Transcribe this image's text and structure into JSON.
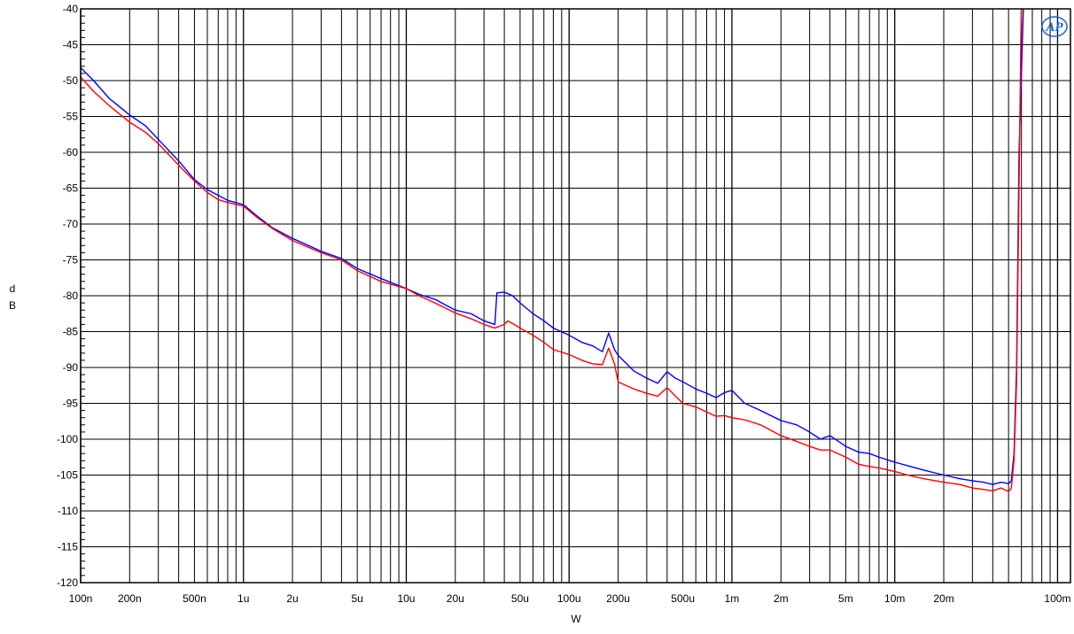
{
  "chart_data": {
    "type": "line",
    "title": "",
    "xlabel": "W",
    "ylabel": "d B",
    "ylabel_lines": [
      "d",
      "B"
    ],
    "xscale": "log",
    "xlim": [
      1e-07,
      0.12
    ],
    "ylim": [
      -120,
      -40
    ],
    "grid": true,
    "logo_text": "AP",
    "x_ticks": [
      {
        "value": 1e-07,
        "label": "100n"
      },
      {
        "value": 2e-07,
        "label": "200n"
      },
      {
        "value": 5e-07,
        "label": "500n"
      },
      {
        "value": 1e-06,
        "label": "1u"
      },
      {
        "value": 2e-06,
        "label": "2u"
      },
      {
        "value": 5e-06,
        "label": "5u"
      },
      {
        "value": 1e-05,
        "label": "10u"
      },
      {
        "value": 2e-05,
        "label": "20u"
      },
      {
        "value": 5e-05,
        "label": "50u"
      },
      {
        "value": 0.0001,
        "label": "100u"
      },
      {
        "value": 0.0002,
        "label": "200u"
      },
      {
        "value": 0.0005,
        "label": "500u"
      },
      {
        "value": 0.001,
        "label": "1m"
      },
      {
        "value": 0.002,
        "label": "2m"
      },
      {
        "value": 0.005,
        "label": "5m"
      },
      {
        "value": 0.01,
        "label": "10m"
      },
      {
        "value": 0.02,
        "label": "20m"
      },
      {
        "value": 0.1,
        "label": "100m"
      }
    ],
    "y_ticks": [
      {
        "value": -40,
        "label": "-40"
      },
      {
        "value": -45,
        "label": "-45"
      },
      {
        "value": -50,
        "label": "-50"
      },
      {
        "value": -55,
        "label": "-55"
      },
      {
        "value": -60,
        "label": "-60"
      },
      {
        "value": -65,
        "label": "-65"
      },
      {
        "value": -70,
        "label": "-70"
      },
      {
        "value": -75,
        "label": "-75"
      },
      {
        "value": -80,
        "label": "-80"
      },
      {
        "value": -85,
        "label": "-85"
      },
      {
        "value": -90,
        "label": "-90"
      },
      {
        "value": -95,
        "label": "-95"
      },
      {
        "value": -100,
        "label": "-100"
      },
      {
        "value": -105,
        "label": "-105"
      },
      {
        "value": -110,
        "label": "-110"
      },
      {
        "value": -115,
        "label": "-115"
      },
      {
        "value": -120,
        "label": "-120"
      }
    ],
    "series": [
      {
        "color": "#0000ff",
        "x": [
          1e-07,
          1.2e-07,
          1.5e-07,
          2e-07,
          2.5e-07,
          3e-07,
          4e-07,
          5e-07,
          6e-07,
          7e-07,
          8e-07,
          1e-06,
          1.2e-06,
          1.5e-06,
          2e-06,
          3e-06,
          4e-06,
          5e-06,
          7e-06,
          1e-05,
          1.2e-05,
          1.5e-05,
          2e-05,
          2.5e-05,
          3e-05,
          3.5e-05,
          3.6e-05,
          4e-05,
          4.5e-05,
          5e-05,
          6e-05,
          7e-05,
          8e-05,
          0.0001,
          0.00012,
          0.00014,
          0.00016,
          0.000175,
          0.00019,
          0.0002,
          0.00025,
          0.0003,
          0.00035,
          0.0004,
          0.00045,
          0.0005,
          0.0006,
          0.0007,
          0.0008,
          0.0009,
          0.001,
          0.0012,
          0.0015,
          0.002,
          0.0025,
          0.003,
          0.0035,
          0.004,
          0.005,
          0.006,
          0.007,
          0.008,
          0.01,
          0.012,
          0.015,
          0.02,
          0.025,
          0.03,
          0.035,
          0.04,
          0.045,
          0.05,
          0.052,
          0.054,
          0.056,
          0.058,
          0.062
        ],
        "y": [
          -48.2,
          -50,
          -52.5,
          -54.8,
          -56.3,
          -58.2,
          -61.2,
          -63.8,
          -65.2,
          -66,
          -66.7,
          -67.3,
          -68.8,
          -70.5,
          -72,
          -73.8,
          -74.8,
          -76.2,
          -77.6,
          -79,
          -79.8,
          -80.5,
          -82,
          -82.5,
          -83.5,
          -84,
          -79.6,
          -79.5,
          -80,
          -81,
          -82.5,
          -83.5,
          -84.5,
          -85.5,
          -86.5,
          -87,
          -87.8,
          -85.2,
          -87.5,
          -88.3,
          -90.5,
          -91.5,
          -92.2,
          -90.6,
          -91.5,
          -92,
          -93,
          -93.6,
          -94.2,
          -93.5,
          -93.2,
          -95,
          -96,
          -97.4,
          -98,
          -99,
          -100,
          -99.5,
          -101,
          -101.8,
          -102,
          -102.5,
          -103.2,
          -103.7,
          -104.3,
          -105,
          -105.5,
          -105.8,
          -106,
          -106.3,
          -106,
          -106.2,
          -105.8,
          -102,
          -90,
          -60,
          -38
        ]
      },
      {
        "color": "#ff0000",
        "x": [
          1e-07,
          1.2e-07,
          1.5e-07,
          2e-07,
          2.5e-07,
          3e-07,
          4e-07,
          5e-07,
          6e-07,
          7e-07,
          8e-07,
          1e-06,
          1.2e-06,
          1.5e-06,
          2e-06,
          3e-06,
          4e-06,
          5e-06,
          7e-06,
          1e-05,
          1.2e-05,
          1.5e-05,
          2e-05,
          2.5e-05,
          3e-05,
          3.5e-05,
          4e-05,
          4.2e-05,
          4.6e-05,
          5e-05,
          6e-05,
          7e-05,
          8e-05,
          0.0001,
          0.00012,
          0.00014,
          0.00016,
          0.000175,
          0.00019,
          0.0002,
          0.00025,
          0.0003,
          0.00035,
          0.0004,
          0.00045,
          0.0005,
          0.0006,
          0.0007,
          0.0008,
          0.0009,
          0.001,
          0.0012,
          0.0015,
          0.002,
          0.0025,
          0.003,
          0.0035,
          0.004,
          0.005,
          0.006,
          0.007,
          0.008,
          0.01,
          0.012,
          0.015,
          0.02,
          0.025,
          0.03,
          0.035,
          0.04,
          0.045,
          0.05,
          0.052,
          0.054,
          0.056,
          0.058,
          0.06
        ],
        "y": [
          -49.5,
          -51.5,
          -53.5,
          -55.8,
          -57.2,
          -58.8,
          -61.8,
          -64,
          -65.6,
          -66.6,
          -67,
          -67.5,
          -69,
          -70.6,
          -72.3,
          -74,
          -75,
          -76.5,
          -78,
          -79,
          -80,
          -81,
          -82.4,
          -83.2,
          -84,
          -84.5,
          -84,
          -83.5,
          -84,
          -84.5,
          -85.5,
          -86.5,
          -87.5,
          -88.2,
          -89,
          -89.5,
          -89.6,
          -87.3,
          -89.5,
          -92,
          -93,
          -93.6,
          -94,
          -92.8,
          -94,
          -95,
          -95.5,
          -96.2,
          -96.8,
          -96.7,
          -97,
          -97.3,
          -98,
          -99.5,
          -100.3,
          -101,
          -101.5,
          -101.5,
          -102.5,
          -103.5,
          -103.8,
          -104,
          -104.5,
          -105,
          -105.5,
          -106,
          -106.3,
          -106.8,
          -107,
          -107.2,
          -106.8,
          -107.3,
          -106.8,
          -103,
          -92,
          -65,
          -38
        ]
      }
    ]
  }
}
